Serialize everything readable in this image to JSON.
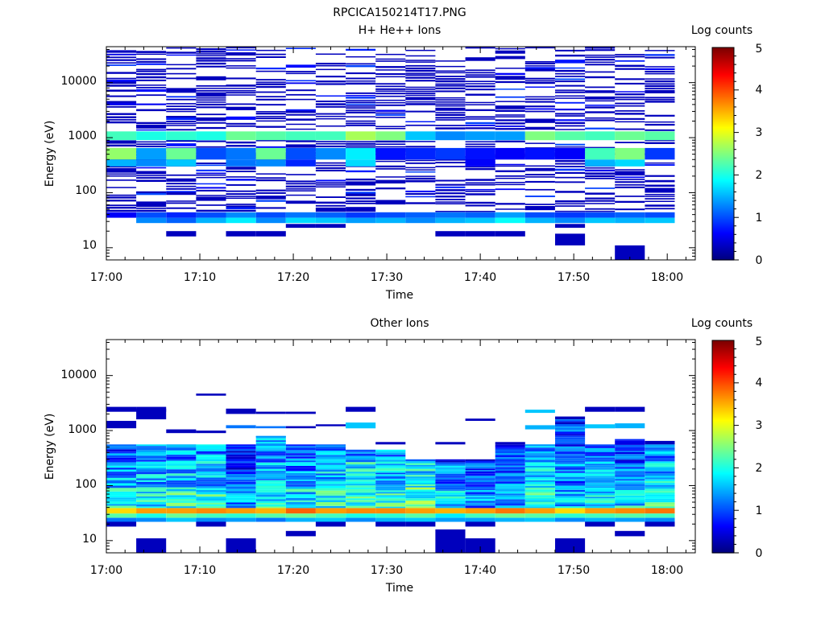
{
  "figure": {
    "title": "RPCICA150214T17.PNG"
  },
  "chart_data": [
    {
      "type": "heatmap",
      "title": "H+ He++ Ions",
      "xlabel": "Time",
      "ylabel": "Energy (eV)",
      "y_scale": "log",
      "xlim": [
        "17:00",
        "18:03"
      ],
      "ylim": [
        6,
        45000
      ],
      "x_ticks": [
        "17:00",
        "17:10",
        "17:20",
        "17:30",
        "17:40",
        "17:50",
        "18:00"
      ],
      "y_ticks": [
        "10",
        "100",
        "1000",
        "10000"
      ],
      "colorbar": {
        "label": "Log counts",
        "range": [
          0,
          5
        ],
        "ticks": [
          "0",
          "1",
          "2",
          "3",
          "4",
          "5"
        ],
        "colormap": "jet"
      },
      "time_bins": [
        "17:01:36",
        "17:04:48",
        "17:08:00",
        "17:11:12",
        "17:14:24",
        "17:17:36",
        "17:20:48",
        "17:24:00",
        "17:27:12",
        "17:30:24",
        "17:33:36",
        "17:36:48",
        "17:40:00",
        "17:43:12",
        "17:46:24",
        "17:49:36",
        "17:52:48",
        "17:56:00",
        "17:59:12"
      ],
      "cells": [
        [
          0,
          900,
          1300,
          2.2
        ],
        [
          1,
          900,
          1300,
          2.0
        ],
        [
          2,
          900,
          1300,
          2.1
        ],
        [
          3,
          900,
          1300,
          2.0
        ],
        [
          4,
          900,
          1300,
          2.4
        ],
        [
          5,
          900,
          1300,
          2.3
        ],
        [
          6,
          900,
          1300,
          2.2
        ],
        [
          7,
          900,
          1300,
          2.2
        ],
        [
          8,
          900,
          1300,
          2.7
        ],
        [
          9,
          900,
          1300,
          2.5
        ],
        [
          10,
          900,
          1300,
          1.6
        ],
        [
          11,
          900,
          1300,
          1.3
        ],
        [
          12,
          900,
          1300,
          1.4
        ],
        [
          13,
          900,
          1300,
          1.4
        ],
        [
          14,
          900,
          1300,
          2.5
        ],
        [
          15,
          900,
          1300,
          2.3
        ],
        [
          16,
          900,
          1300,
          2.2
        ],
        [
          17,
          900,
          1300,
          2.4
        ],
        [
          18,
          900,
          1300,
          2.3
        ],
        [
          0,
          400,
          650,
          2.6
        ],
        [
          1,
          400,
          650,
          1.4
        ],
        [
          2,
          400,
          650,
          2.4
        ],
        [
          3,
          400,
          650,
          1.0
        ],
        [
          4,
          400,
          650,
          1.2
        ],
        [
          5,
          400,
          650,
          2.4
        ],
        [
          6,
          400,
          650,
          1.0
        ],
        [
          7,
          400,
          650,
          1.3
        ],
        [
          8,
          400,
          650,
          1.8
        ],
        [
          9,
          400,
          650,
          0.7
        ],
        [
          10,
          400,
          650,
          0.8
        ],
        [
          11,
          400,
          650,
          0.9
        ],
        [
          12,
          400,
          650,
          0.7
        ],
        [
          13,
          400,
          650,
          0.6
        ],
        [
          14,
          400,
          650,
          0.7
        ],
        [
          15,
          400,
          650,
          0.6
        ],
        [
          16,
          400,
          650,
          2.2
        ],
        [
          17,
          400,
          650,
          2.5
        ],
        [
          18,
          400,
          650,
          0.9
        ],
        [
          0,
          300,
          400,
          1.5
        ],
        [
          1,
          300,
          400,
          1.3
        ],
        [
          2,
          300,
          400,
          1.6
        ],
        [
          4,
          300,
          400,
          1.2
        ],
        [
          5,
          300,
          400,
          1.3
        ],
        [
          6,
          300,
          400,
          0.8
        ],
        [
          8,
          300,
          400,
          1.7
        ],
        [
          12,
          300,
          400,
          0.6
        ],
        [
          16,
          300,
          400,
          1.5
        ],
        [
          17,
          300,
          400,
          1.7
        ],
        [
          0,
          35,
          44,
          0.6
        ],
        [
          1,
          35,
          44,
          1.0
        ],
        [
          2,
          35,
          44,
          0.8
        ],
        [
          3,
          35,
          44,
          1.0
        ],
        [
          4,
          35,
          44,
          1.3
        ],
        [
          5,
          35,
          44,
          1.0
        ],
        [
          6,
          35,
          44,
          1.2
        ],
        [
          7,
          35,
          44,
          1.1
        ],
        [
          8,
          35,
          44,
          0.9
        ],
        [
          9,
          35,
          44,
          1.0
        ],
        [
          10,
          35,
          44,
          1.1
        ],
        [
          11,
          35,
          44,
          1.2
        ],
        [
          12,
          35,
          44,
          1.1
        ],
        [
          13,
          35,
          44,
          1.4
        ],
        [
          14,
          35,
          44,
          1.0
        ],
        [
          15,
          35,
          44,
          0.9
        ],
        [
          16,
          35,
          44,
          1.0
        ],
        [
          17,
          35,
          44,
          1.1
        ],
        [
          18,
          35,
          44,
          1.0
        ],
        [
          1,
          28,
          35,
          1.3
        ],
        [
          2,
          28,
          35,
          1.1
        ],
        [
          3,
          28,
          35,
          1.5
        ],
        [
          4,
          28,
          35,
          1.8
        ],
        [
          5,
          28,
          35,
          1.3
        ],
        [
          6,
          28,
          35,
          1.7
        ],
        [
          7,
          28,
          35,
          1.6
        ],
        [
          8,
          28,
          35,
          1.4
        ],
        [
          9,
          28,
          35,
          1.5
        ],
        [
          10,
          28,
          35,
          1.3
        ],
        [
          11,
          28,
          35,
          1.5
        ],
        [
          12,
          28,
          35,
          1.6
        ],
        [
          13,
          28,
          35,
          1.9
        ],
        [
          14,
          28,
          35,
          1.5
        ],
        [
          15,
          28,
          35,
          1.3
        ],
        [
          16,
          28,
          35,
          1.6
        ],
        [
          17,
          28,
          35,
          1.5
        ],
        [
          18,
          28,
          35,
          1.6
        ],
        [
          6,
          23,
          27,
          0.3
        ],
        [
          7,
          23,
          27,
          0.3
        ],
        [
          15,
          23,
          27,
          0.3
        ],
        [
          2,
          16,
          20,
          0.3
        ],
        [
          4,
          16,
          20,
          0.3
        ],
        [
          5,
          16,
          20,
          0.3
        ],
        [
          11,
          16,
          20,
          0.3
        ],
        [
          12,
          16,
          20,
          0.3
        ],
        [
          13,
          16,
          20,
          0.3
        ],
        [
          15,
          11,
          18,
          0.3
        ],
        [
          17,
          6,
          11,
          0.3
        ]
      ]
    },
    {
      "type": "heatmap",
      "title": "Other Ions",
      "xlabel": "Time",
      "ylabel": "Energy (eV)",
      "y_scale": "log",
      "xlim": [
        "17:00",
        "18:03"
      ],
      "ylim": [
        6,
        45000
      ],
      "x_ticks": [
        "17:00",
        "17:10",
        "17:20",
        "17:30",
        "17:40",
        "17:50",
        "18:00"
      ],
      "y_ticks": [
        "10",
        "100",
        "1000",
        "10000"
      ],
      "colorbar": {
        "label": "Log counts",
        "range": [
          0,
          5
        ],
        "ticks": [
          "0",
          "1",
          "2",
          "3",
          "4",
          "5"
        ],
        "colormap": "jet"
      },
      "time_bins": [
        "17:01:36",
        "17:04:48",
        "17:08:00",
        "17:11:12",
        "17:14:24",
        "17:17:36",
        "17:20:48",
        "17:24:00",
        "17:27:12",
        "17:30:24",
        "17:33:36",
        "17:36:48",
        "17:40:00",
        "17:43:12",
        "17:46:24",
        "17:49:36",
        "17:52:48",
        "17:56:00",
        "17:59:12"
      ],
      "profiles": {
        "top_eV": [
          560,
          560,
          560,
          560,
          560,
          800,
          560,
          560,
          450,
          450,
          300,
          300,
          300,
          560,
          560,
          1600,
          560,
          700,
          560
        ],
        "mean_log_counts": [
          1.4,
          1.5,
          1.6,
          1.6,
          0.9,
          1.6,
          1.3,
          1.6,
          1.8,
          1.6,
          1.8,
          1.2,
          0.9,
          1.1,
          1.6,
          1.2,
          1.4,
          1.3,
          1.6
        ],
        "peak_band_eV": [
          31,
          39
        ],
        "peak_log_counts": [
          3.3,
          3.6,
          3.6,
          3.7,
          3.6,
          3.5,
          3.9,
          3.6,
          3.7,
          3.7,
          3.6,
          3.5,
          3.6,
          3.8,
          3.6,
          3.3,
          3.6,
          3.7,
          3.8
        ]
      },
      "cells": [
        [
          0,
          2200,
          2700,
          0.3
        ],
        [
          1,
          2200,
          2700,
          0.3
        ],
        [
          3,
          4300,
          4700,
          0.3
        ],
        [
          4,
          2000,
          2500,
          0.3
        ],
        [
          5,
          2000,
          2200,
          0.3
        ],
        [
          6,
          2000,
          2200,
          0.3
        ],
        [
          8,
          2200,
          2700,
          0.3
        ],
        [
          16,
          2200,
          2700,
          0.3
        ],
        [
          17,
          2200,
          2700,
          0.3
        ],
        [
          14,
          2100,
          2400,
          1.6
        ],
        [
          0,
          1100,
          1500,
          0.3
        ],
        [
          1,
          1600,
          2500,
          0.3
        ],
        [
          2,
          900,
          1050,
          0.3
        ],
        [
          3,
          900,
          1000,
          0.3
        ],
        [
          4,
          1100,
          1250,
          1.2
        ],
        [
          5,
          1100,
          1200,
          1.2
        ],
        [
          6,
          1100,
          1200,
          0.3
        ],
        [
          7,
          1200,
          1300,
          0.3
        ],
        [
          8,
          1100,
          1400,
          1.6
        ],
        [
          9,
          560,
          620,
          0.3
        ],
        [
          11,
          560,
          620,
          0.3
        ],
        [
          12,
          1500,
          1650,
          0.3
        ],
        [
          13,
          560,
          620,
          0.3
        ],
        [
          14,
          1050,
          1250,
          1.5
        ],
        [
          15,
          1600,
          1800,
          0.3
        ],
        [
          16,
          1100,
          1300,
          1.6
        ],
        [
          17,
          1100,
          1350,
          1.5
        ],
        [
          18,
          560,
          650,
          0.3
        ],
        [
          0,
          26,
          31,
          2.3
        ],
        [
          1,
          26,
          31,
          2.0
        ],
        [
          2,
          26,
          31,
          2.4
        ],
        [
          3,
          26,
          31,
          2.2
        ],
        [
          4,
          26,
          31,
          2.1
        ],
        [
          5,
          26,
          31,
          2.3
        ],
        [
          6,
          26,
          31,
          2.4
        ],
        [
          7,
          26,
          31,
          2.2
        ],
        [
          8,
          26,
          31,
          2.0
        ],
        [
          9,
          26,
          31,
          2.1
        ],
        [
          10,
          26,
          31,
          2.3
        ],
        [
          11,
          26,
          31,
          1.8
        ],
        [
          12,
          26,
          31,
          2.2
        ],
        [
          13,
          26,
          31,
          2.4
        ],
        [
          14,
          26,
          31,
          2.3
        ],
        [
          15,
          26,
          31,
          2.1
        ],
        [
          16,
          26,
          31,
          2.2
        ],
        [
          17,
          26,
          31,
          2.3
        ],
        [
          18,
          26,
          31,
          2.2
        ],
        [
          0,
          22,
          26,
          1.2
        ],
        [
          1,
          22,
          26,
          1.3
        ],
        [
          2,
          22,
          26,
          1.6
        ],
        [
          3,
          22,
          26,
          1.3
        ],
        [
          4,
          22,
          26,
          1.4
        ],
        [
          5,
          22,
          26,
          1.2
        ],
        [
          6,
          22,
          26,
          1.5
        ],
        [
          7,
          22,
          26,
          1.6
        ],
        [
          8,
          22,
          26,
          1.3
        ],
        [
          9,
          22,
          26,
          1.5
        ],
        [
          10,
          22,
          26,
          1.6
        ],
        [
          11,
          22,
          26,
          1.4
        ],
        [
          12,
          22,
          26,
          1.4
        ],
        [
          13,
          22,
          26,
          1.5
        ],
        [
          14,
          22,
          26,
          1.6
        ],
        [
          15,
          22,
          26,
          1.3
        ],
        [
          16,
          22,
          26,
          1.5
        ],
        [
          17,
          22,
          26,
          1.4
        ],
        [
          18,
          22,
          26,
          1.3
        ],
        [
          0,
          18,
          22,
          0.3
        ],
        [
          3,
          18,
          22,
          0.3
        ],
        [
          7,
          18,
          22,
          0.3
        ],
        [
          9,
          18,
          22,
          0.3
        ],
        [
          10,
          18,
          22,
          0.3
        ],
        [
          12,
          18,
          22,
          0.3
        ],
        [
          16,
          18,
          22,
          0.3
        ],
        [
          18,
          18,
          22,
          0.3
        ],
        [
          6,
          12,
          15,
          0.3
        ],
        [
          17,
          12,
          15,
          0.3
        ],
        [
          11,
          11,
          16,
          0.3
        ],
        [
          1,
          6,
          11,
          0.3
        ],
        [
          4,
          6,
          11,
          0.3
        ],
        [
          11,
          6,
          11,
          0.3
        ],
        [
          12,
          6,
          11,
          0.3
        ],
        [
          15,
          6,
          11,
          0.3
        ]
      ]
    }
  ]
}
